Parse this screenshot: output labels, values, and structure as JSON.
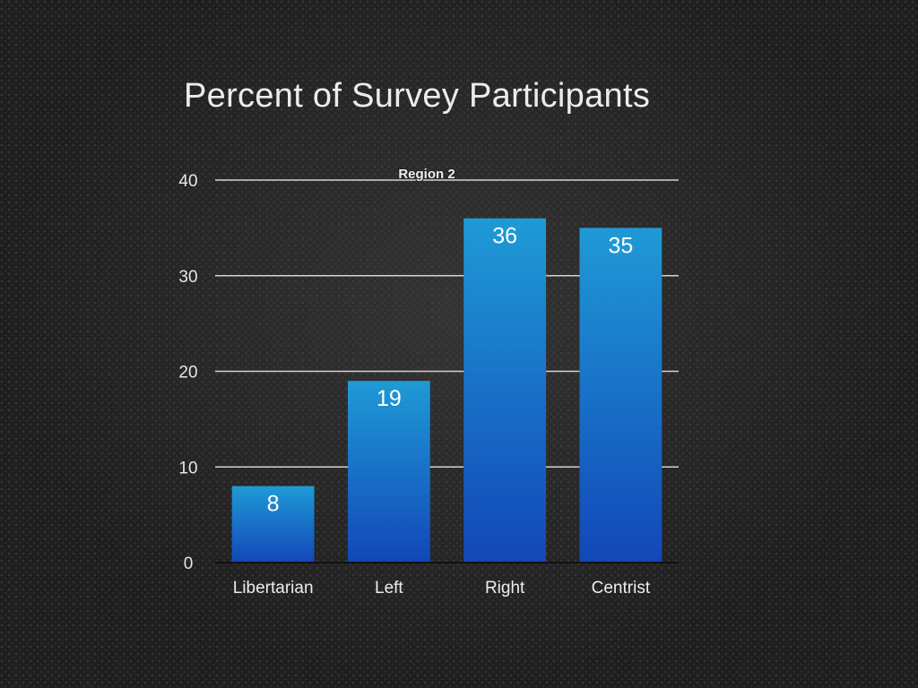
{
  "chart_data": {
    "type": "bar",
    "title": "Percent of Survey Participants",
    "categories": [
      "Libertarian",
      "Left",
      "Right",
      "Centrist"
    ],
    "series": [
      {
        "name": "Region 2",
        "values": [
          8,
          19,
          36,
          35
        ]
      }
    ],
    "ylim": [
      0,
      40
    ],
    "yticks": [
      0,
      10,
      20,
      30,
      40
    ],
    "grid": true,
    "legend_position": "top",
    "data_labels": true,
    "bar_color_top": "#1f9ad6",
    "bar_color_bottom": "#1247b8",
    "background_color": "#1e1e1e"
  }
}
